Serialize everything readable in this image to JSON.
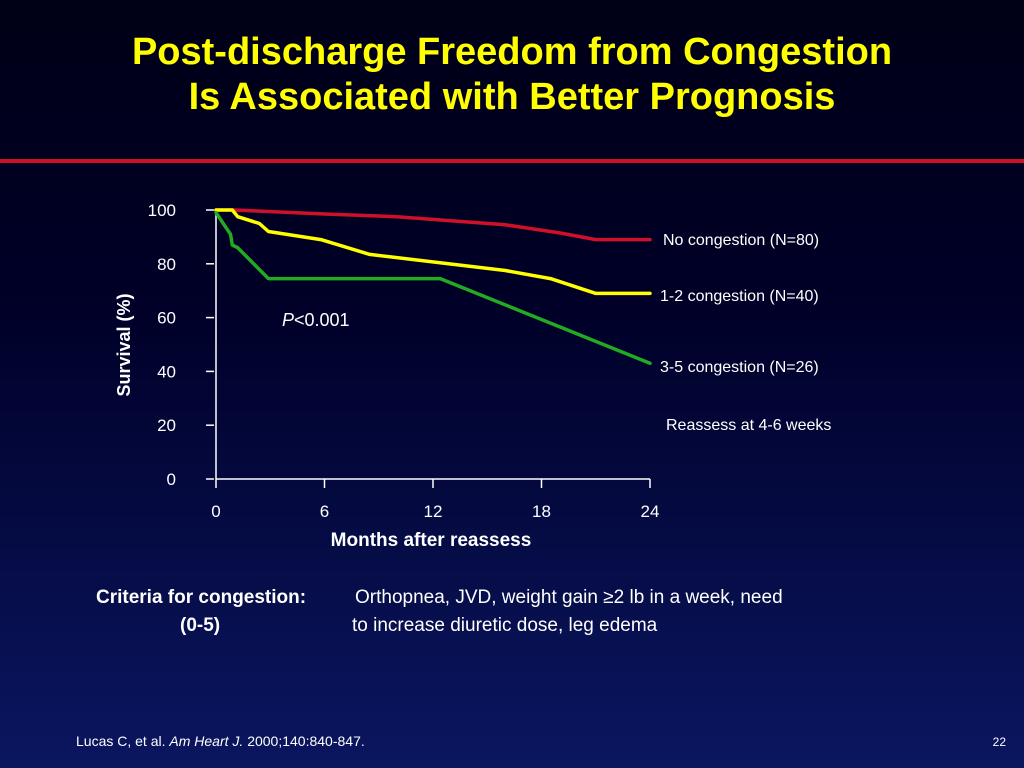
{
  "slide": {
    "title_line1": "Post-discharge Freedom from Congestion",
    "title_line2": "Is Associated with Better Prognosis",
    "colors": {
      "background": "#000028",
      "title": "#ffff00",
      "rule": "#d0102a"
    },
    "criteria": {
      "label_line1": "Criteria for congestion:",
      "label_line2": "(0-5)",
      "text_line1": "Orthopnea, JVD, weight gain ≥2 lb in a week, need",
      "text_line2": "to increase diuretic dose, leg edema"
    },
    "reference": {
      "authors": "Lucas C, et al.",
      "journal": "Am Heart J.",
      "citation": "2000;140:840-847."
    },
    "page_number": "22"
  },
  "chart_data": {
    "type": "line",
    "xlabel": "Months after reassess",
    "ylabel": "Survival (%)",
    "xlim": [
      0,
      24
    ],
    "ylim": [
      0,
      100
    ],
    "x_ticks": [
      0,
      6,
      12,
      18,
      24
    ],
    "y_ticks": [
      0,
      20,
      40,
      60,
      80,
      100
    ],
    "annotations": {
      "p_italic": "P",
      "p_value": "<0.001",
      "note": "Reassess at 4-6 weeks"
    },
    "series": [
      {
        "name": "No congestion (N=80)",
        "color": "#d0102a",
        "points": [
          [
            0,
            100
          ],
          [
            1,
            100
          ],
          [
            6,
            98.5
          ],
          [
            10,
            97.5
          ],
          [
            16,
            94.5
          ],
          [
            19,
            91.5
          ],
          [
            21,
            89
          ],
          [
            24,
            89
          ]
        ]
      },
      {
        "name": "1-2 congestion (N=40)",
        "color": "#ffff00",
        "points": [
          [
            0,
            100
          ],
          [
            0.9,
            100
          ],
          [
            1.2,
            97.5
          ],
          [
            2.4,
            95
          ],
          [
            2.9,
            92
          ],
          [
            5.8,
            89
          ],
          [
            8.5,
            83.5
          ],
          [
            16,
            77.5
          ],
          [
            18.5,
            74.5
          ],
          [
            21,
            69
          ],
          [
            24,
            69
          ]
        ]
      },
      {
        "name": "3-5 congestion (N=26)",
        "color": "#22aa22",
        "points": [
          [
            0,
            99
          ],
          [
            0.5,
            94
          ],
          [
            0.8,
            91
          ],
          [
            0.9,
            87
          ],
          [
            1.2,
            86
          ],
          [
            2.9,
            74.5
          ],
          [
            12.4,
            74.5
          ],
          [
            24,
            43
          ]
        ]
      }
    ]
  }
}
